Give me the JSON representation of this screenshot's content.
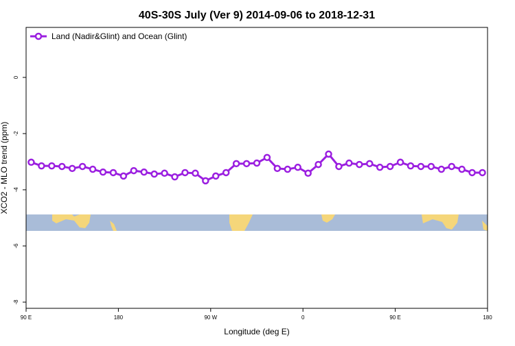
{
  "chart_data": {
    "type": "line",
    "title": "40S-30S July (Ver 9)   2014-09-06 to 2018-12-31",
    "x_label": "Longitude (deg E)",
    "y_label": "XCO2 - MLO trend (ppm)",
    "x": [
      95,
      105,
      115,
      125,
      135,
      145,
      155,
      165,
      175,
      185,
      195,
      205,
      215,
      225,
      235,
      245,
      255,
      265,
      275,
      285,
      295,
      305,
      315,
      325,
      335,
      345,
      355,
      365,
      375,
      385,
      395,
      405,
      415,
      425,
      435,
      445,
      455,
      465,
      475,
      485,
      495,
      505,
      515,
      525,
      535
    ],
    "series": [
      {
        "name": "Land (Nadir&Glint) and Ocean (Glint)",
        "color": "#9b1fe0",
        "values": [
          -3.02,
          -3.15,
          -3.15,
          -3.17,
          -3.24,
          -3.17,
          -3.27,
          -3.37,
          -3.39,
          -3.51,
          -3.32,
          -3.37,
          -3.44,
          -3.41,
          -3.54,
          -3.39,
          -3.41,
          -3.68,
          -3.51,
          -3.39,
          -3.07,
          -3.07,
          -3.05,
          -2.85,
          -3.24,
          -3.27,
          -3.2,
          -3.41,
          -3.1,
          -2.73,
          -3.17,
          -3.05,
          -3.1,
          -3.07,
          -3.2,
          -3.17,
          -3.02,
          -3.15,
          -3.17,
          -3.17,
          -3.27,
          -3.17,
          -3.27,
          -3.39,
          -3.39
        ]
      }
    ],
    "xlim": [
      90,
      540
    ],
    "xticks": [
      {
        "value": 90,
        "label": "90 E"
      },
      {
        "value": 180,
        "label": "180"
      },
      {
        "value": 270,
        "label": "90 W"
      },
      {
        "value": 360,
        "label": "0"
      },
      {
        "value": 450,
        "label": "90 E"
      },
      {
        "value": 540,
        "label": "180"
      }
    ],
    "ylim": [
      -8.22,
      1.78
    ],
    "yticks": [
      0,
      -2,
      -4,
      -6,
      -8
    ],
    "legend": "top-left"
  }
}
